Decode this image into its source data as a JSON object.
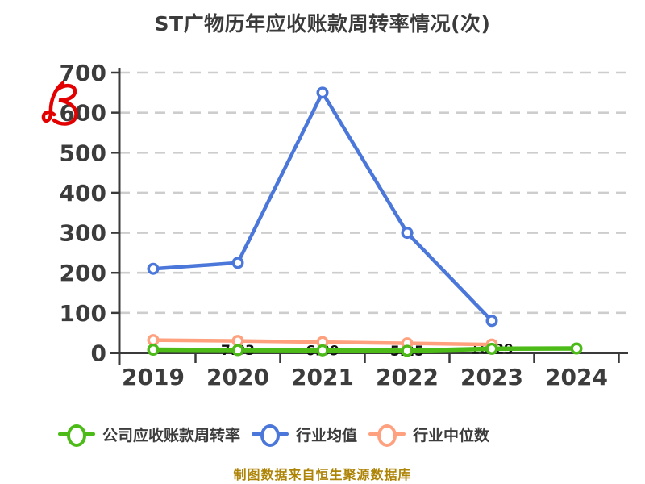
{
  "title": "ST广物历年应收账款周转率情况(次)",
  "caption": "制图数据来自恒生聚源数据库",
  "watermark": {
    "type": "hand-drawn red scribble mark",
    "color": "#e30000"
  },
  "colors": {
    "background": "#ffffff",
    "axis": "#3a3a3a",
    "grid": "#cdcdcd",
    "tick_label": "#3c3c3c",
    "title": "#3b3b3b",
    "caption": "#ae8407",
    "data_label": "#111111",
    "company_series": "#4cbb17",
    "industry_mean_series": "#4a77d9",
    "industry_median_series": "#ffa07e"
  },
  "chart_data": {
    "type": "line",
    "title": "ST广物历年应收账款周转率情况(次)",
    "categories": [
      "2019",
      "2020",
      "2021",
      "2022",
      "2023",
      "2024"
    ],
    "series": [
      {
        "name": "公司应收账款周转率",
        "color": "#4cbb17",
        "values": [
          8,
          7.03,
          6.39,
          5.25,
          10.29,
          11
        ],
        "point_labels": [
          "",
          "7.03",
          "6.39",
          "5.25",
          "10.29",
          ""
        ]
      },
      {
        "name": "行业均值",
        "color": "#4a77d9",
        "values": [
          210,
          225,
          650,
          300,
          80,
          null
        ],
        "point_labels": [
          "",
          "",
          "",
          "",
          "",
          ""
        ]
      },
      {
        "name": "行业中位数",
        "color": "#ffa07e",
        "values": [
          32,
          30,
          27,
          24,
          21,
          null
        ],
        "point_labels": [
          "",
          "",
          "",
          "",
          "",
          ""
        ]
      }
    ],
    "ylim": [
      0,
      700
    ],
    "yticks": [
      0,
      100,
      200,
      300,
      400,
      500,
      600,
      700
    ],
    "xlabel": "",
    "ylabel": "",
    "grid": "horizontal-dashed",
    "legend_position": "bottom",
    "marker": "circle-white-fill"
  }
}
